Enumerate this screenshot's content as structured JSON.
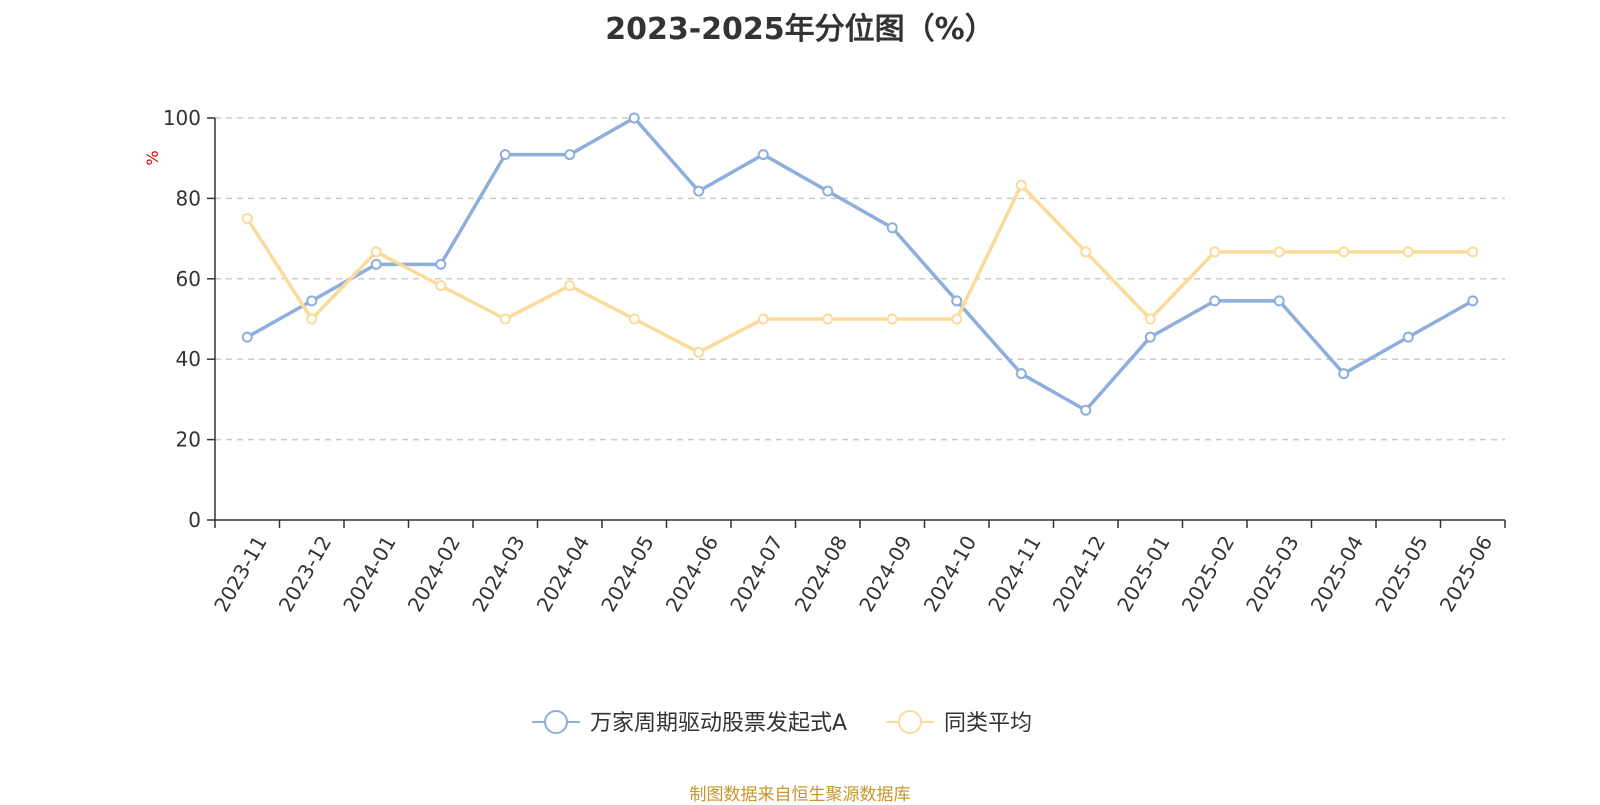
{
  "chart_data": {
    "type": "line",
    "title": "2023-2025年分位图（%）",
    "ylabel": "%",
    "xlabel": "",
    "ylim": [
      0,
      100
    ],
    "yticks": [
      0,
      20,
      40,
      60,
      80,
      100
    ],
    "grid": true,
    "legend_position": "bottom-center",
    "categories": [
      "2023-11",
      "2023-12",
      "2024-01",
      "2024-02",
      "2024-03",
      "2024-04",
      "2024-05",
      "2024-06",
      "2024-07",
      "2024-08",
      "2024-09",
      "2024-10",
      "2024-11",
      "2024-12",
      "2025-01",
      "2025-02",
      "2025-03",
      "2025-04",
      "2025-05",
      "2025-06"
    ],
    "series": [
      {
        "name": "万家周期驱动股票发起式A",
        "color": "#8eaedb",
        "values": [
          45.5,
          54.5,
          63.6,
          63.6,
          90.9,
          90.9,
          100,
          81.8,
          90.9,
          81.8,
          72.7,
          54.5,
          36.4,
          27.3,
          45.5,
          54.5,
          54.5,
          36.4,
          45.5,
          54.5
        ]
      },
      {
        "name": "同类平均",
        "color": "#fcdb9a",
        "values": [
          75,
          50,
          66.7,
          58.3,
          50,
          58.3,
          50,
          41.7,
          50,
          50,
          50,
          50,
          83.3,
          66.7,
          50,
          66.7,
          66.7,
          66.7,
          66.7,
          66.7
        ]
      }
    ]
  },
  "source": "制图数据来自恒生聚源数据库",
  "colors": {
    "axis": "#333333",
    "grid": "#cccccc",
    "ylabel": "#e00000"
  }
}
